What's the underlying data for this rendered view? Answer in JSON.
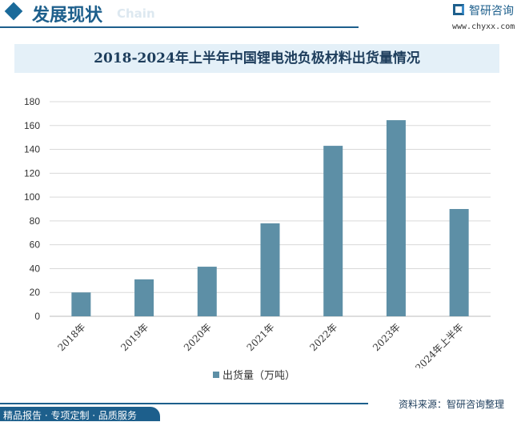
{
  "header": {
    "title": "发展现状",
    "subtitle": "Chain",
    "brand": "智研咨询",
    "url": "www.chyxx.com"
  },
  "chart_data": {
    "type": "bar",
    "title": "2018-2024年上半年中国锂电池负极材料出货量情况",
    "categories": [
      "2018年",
      "2019年",
      "2020年",
      "2021年",
      "2022年",
      "2023年",
      "2024年上半年"
    ],
    "series": [
      {
        "name": "出货量（万吨）",
        "values": [
          20,
          31,
          41.6,
          78,
          143,
          164.5,
          90
        ],
        "color": "#5d8fa6"
      }
    ],
    "ylim": [
      0,
      180
    ],
    "yticks": [
      0,
      20,
      40,
      60,
      80,
      100,
      120,
      140,
      160,
      180
    ],
    "grid": true,
    "legend": "bottom"
  },
  "footer": {
    "left": "精品报告 · 专项定制 · 品质服务",
    "source": "资料来源：智研咨询整理"
  }
}
